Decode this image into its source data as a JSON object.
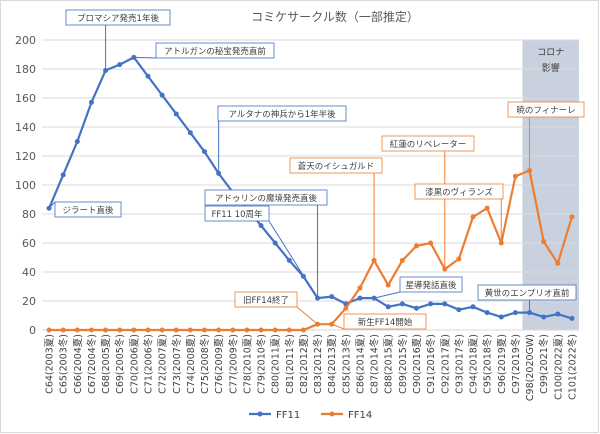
{
  "chart_data": {
    "type": "line",
    "title": "コミケサークル数（一部推定）",
    "ylim": [
      0,
      200
    ],
    "yticks": [
      0,
      20,
      40,
      60,
      80,
      100,
      120,
      140,
      160,
      180,
      200
    ],
    "grid": true,
    "legend_position": "bottom",
    "categories": [
      "C64(2003夏)",
      "C65(2003冬)",
      "C66(2004夏)",
      "C67(2004冬)",
      "C68(2005夏)",
      "C69(2005冬)",
      "C70(2006夏)",
      "C71(2006冬)",
      "C72(2007夏)",
      "C73(2007冬)",
      "C74(2008夏)",
      "C75(2008冬)",
      "C76(2009夏)",
      "C77(2009冬)",
      "C78(2010夏)",
      "C79(2010冬)",
      "C80(2011夏)",
      "C81(2011冬)",
      "C82(2012夏)",
      "C83(2012冬)",
      "C84(2013夏)",
      "C85(2013冬)",
      "C86(2014夏)",
      "C87(2014冬)",
      "C88(2015夏)",
      "C89(2015冬)",
      "C90(2016夏)",
      "C91(2016冬)",
      "C92(2017夏)",
      "C93(2017冬)",
      "C94(2018夏)",
      "C95(2018冬)",
      "C96(2019夏)",
      "C97(2019冬)",
      "C98(2020GW)",
      "C99(2021冬)",
      "C100(2022夏)",
      "C101(2022冬)"
    ],
    "series": [
      {
        "name": "FF11",
        "color": "#4472c4",
        "values": [
          84,
          107,
          130,
          157,
          179,
          183,
          188,
          175,
          162,
          149,
          136,
          123,
          108,
          95,
          84,
          72,
          60,
          48,
          37,
          22,
          23,
          18,
          22,
          22,
          16,
          18,
          15,
          18,
          18,
          14,
          16,
          12,
          9,
          12,
          12,
          9,
          11,
          8
        ]
      },
      {
        "name": "FF14",
        "color": "#ed7d31",
        "values": [
          0,
          0,
          0,
          0,
          0,
          0,
          0,
          0,
          0,
          0,
          0,
          0,
          0,
          0,
          0,
          0,
          0,
          0,
          0,
          4,
          4,
          15,
          29,
          48,
          31,
          48,
          58,
          60,
          42,
          49,
          78,
          84,
          60,
          106,
          110,
          61,
          46,
          78
        ]
      }
    ],
    "annotations": [
      {
        "text": "プロマシア発売1年後",
        "series": "FF11",
        "category": "C68(2005夏)"
      },
      {
        "text": "アトルガンの秘宝発売直前",
        "series": "FF11",
        "category": "C70(2006夏)"
      },
      {
        "text": "アルタナの神兵から1年半後",
        "series": "FF11",
        "category": "C76(2009夏)"
      },
      {
        "text": "ジラート直後",
        "series": "FF11",
        "category": "C64(2003夏)"
      },
      {
        "text": "アドゥリンの魔境発売直後",
        "series": "FF11",
        "category": "C83(2012冬)"
      },
      {
        "text": "FF11 10周年",
        "series": "FF11",
        "category": "C83(2012冬)"
      },
      {
        "text": "旧FF14終了",
        "series": "FF14",
        "category": "C83(2012冬)"
      },
      {
        "text": "新生FF14開始",
        "series": "FF14",
        "category": "C84(2013夏)"
      },
      {
        "text": "蒼天のイシュガルド",
        "series": "FF14",
        "category": "C87(2014冬)"
      },
      {
        "text": "紅蓮のリベレーター",
        "series": "FF14",
        "category": "C92(2017夏)"
      },
      {
        "text": "漆黒のヴィランズ",
        "series": "FF14",
        "category": "C96(2019夏)"
      },
      {
        "text": "暁のフィナーレ",
        "series": "FF14",
        "category": "C98(2020GW)"
      },
      {
        "text": "星導発話直後",
        "series": "FF11",
        "category": "C87(2014冬)"
      },
      {
        "text": "黄世のエンプリオ直前",
        "series": "FF11",
        "category": "C98(2020GW)"
      }
    ],
    "shaded_band": {
      "label_line1": "コロナ",
      "label_line2": "影響",
      "from": "C98(2020GW)",
      "to": "C101(2022冬)",
      "color": "#c9d1de"
    }
  }
}
